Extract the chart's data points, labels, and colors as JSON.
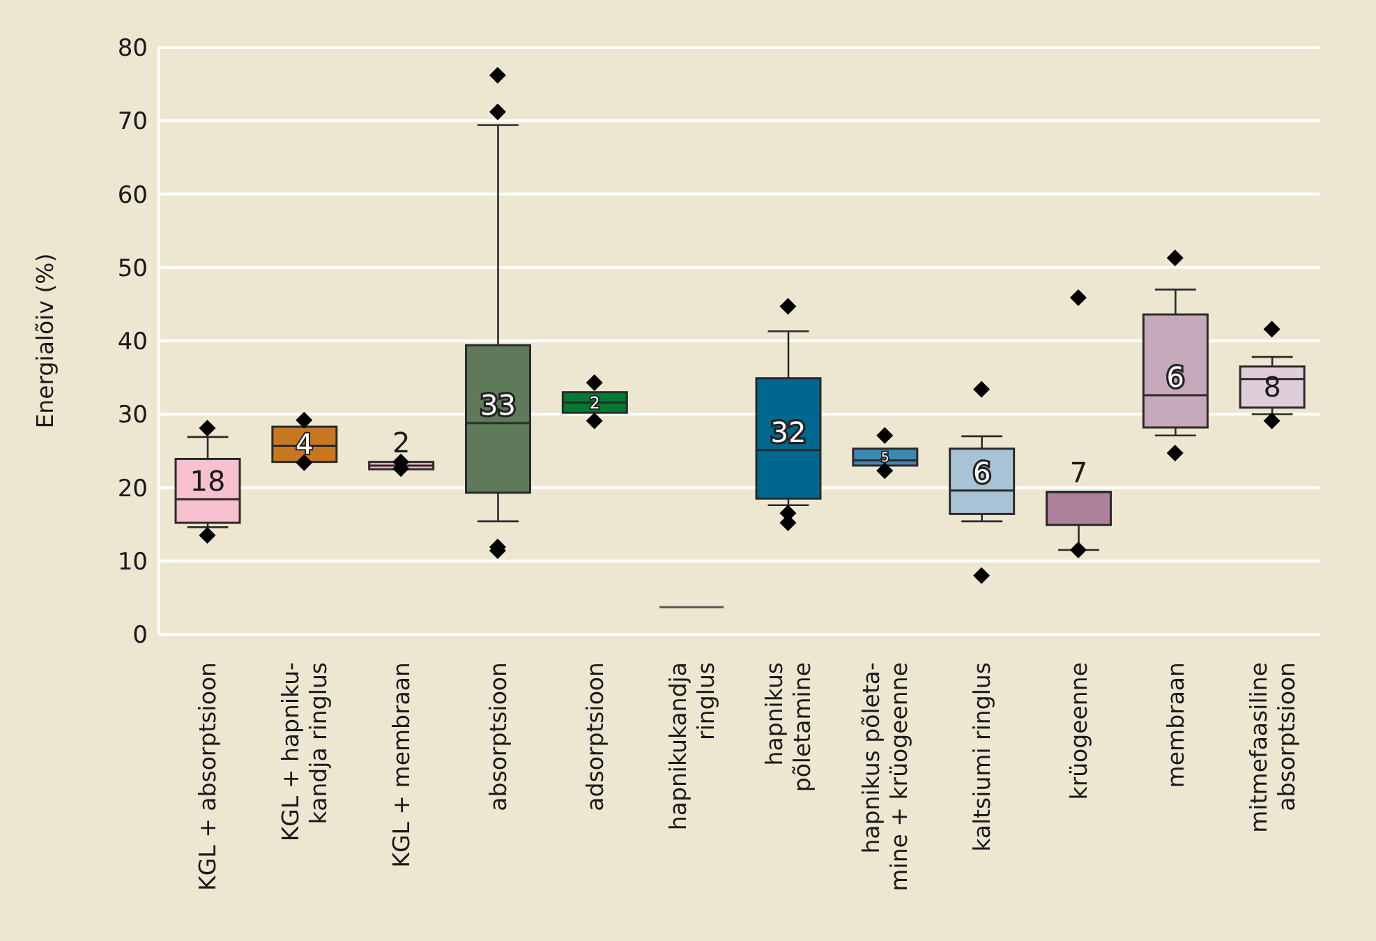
{
  "chart_data": {
    "type": "box",
    "ylabel": "Energialõiv (%)",
    "categories": [
      "KGL + absorptsioon",
      "KGL + hapniku-\nkandja ringlus",
      "KGL + membraan",
      "absorptsioon",
      "adsorptsioon",
      "hapnikukandja\nringlus",
      "hapnikus\npõletamine",
      "hapnikus põleta-\nmine + krüogeenne",
      "kaltsiumi ringlus",
      "krüogeenne",
      "membraan",
      "mitmefaasiline\nabsorptsioon"
    ],
    "boxes": [
      {
        "low": 14.6,
        "q1": 15.2,
        "median": 18.4,
        "q3": 23.9,
        "high": 26.9,
        "outliers": [
          28.1,
          13.5
        ]
      },
      {
        "low": 23.5,
        "q1": 23.5,
        "median": 25.7,
        "q3": 28.3,
        "high": 28.3,
        "outliers": [
          29.2,
          23.4
        ]
      },
      {
        "low": 22.5,
        "q1": 22.5,
        "median": 23.0,
        "q3": 23.5,
        "high": 23.5,
        "outliers": [
          23.5,
          22.6
        ]
      },
      {
        "low": 15.4,
        "q1": 19.3,
        "median": 28.8,
        "q3": 39.4,
        "high": 69.4,
        "outliers": [
          76.2,
          71.2,
          11.9,
          11.4
        ]
      },
      {
        "low": 30.2,
        "q1": 30.2,
        "median": 31.6,
        "q3": 33.0,
        "high": 33.0,
        "outliers": [
          34.3,
          29.1
        ]
      },
      {
        "low": 3.7,
        "q1": 3.7,
        "median": 3.7,
        "q3": 3.7,
        "high": 3.7
      },
      {
        "low": 17.6,
        "q1": 18.5,
        "median": 25.1,
        "q3": 34.9,
        "high": 41.3,
        "outliers": [
          44.7,
          16.5,
          15.2
        ]
      },
      {
        "low": 23.0,
        "q1": 23.0,
        "median": 23.7,
        "q3": 25.3,
        "high": 25.3,
        "outliers": [
          27.1,
          22.3
        ]
      },
      {
        "low": 15.4,
        "q1": 16.4,
        "median": 19.6,
        "q3": 25.3,
        "high": 27.0,
        "outliers": [
          33.4,
          8.0
        ]
      },
      {
        "low": 11.5,
        "q1": 14.9,
        "median": 19.4,
        "q3": 19.4,
        "high": 19.4,
        "outliers": [
          45.9,
          11.5
        ]
      },
      {
        "low": 27.1,
        "q1": 28.2,
        "median": 32.6,
        "q3": 43.6,
        "high": 47.0,
        "outliers": [
          51.3,
          24.7
        ]
      },
      {
        "low": 30.0,
        "q1": 30.9,
        "median": 34.8,
        "q3": 36.5,
        "high": 37.8,
        "outliers": [
          41.6,
          29.1
        ]
      }
    ],
    "colors": [
      "#f7c1d0",
      "#c87620",
      "#f2bccb",
      "#5f7a5a",
      "#007a33",
      "#555555",
      "#00688f",
      "#3a8ab5",
      "#a9c3d6",
      "#ad809c",
      "#c6a9bb",
      "#dfcdd9"
    ],
    "annotations": [
      {
        "text": "18",
        "x": "KGL + absorptsioon",
        "y": 18.4
      },
      {
        "text": "4",
        "x": "KGL + hapniku-\nkandja ringlus",
        "y": 25.7
      },
      {
        "text": "2",
        "x": "KGL + membraan",
        "y": 23.5
      },
      {
        "text": "33",
        "x": "absorptsioon",
        "y": 28.8
      },
      {
        "text": "2",
        "x": "adsorptsioon",
        "y": 31.6
      },
      {
        "text": "32",
        "x": "hapnikus\npõletamine",
        "y": 25.1
      },
      {
        "text": "5",
        "x": "hapnikus põleta-\nmine + krüogeenne",
        "y": 23.7
      },
      {
        "text": "6",
        "x": "kaltsiumi ringlus",
        "y": 19.6
      },
      {
        "text": "7",
        "x": "krüogeenne",
        "y": 19.4
      },
      {
        "text": "6",
        "x": "membraan",
        "y": 32.6
      },
      {
        "text": "8",
        "x": "mitmefaasiline\nabsorptsioon",
        "y": 34.8
      }
    ],
    "ylim": [
      0,
      80
    ],
    "yticks": [
      0,
      10,
      20,
      30,
      40,
      50,
      60,
      70,
      80
    ],
    "grid": "y",
    "marker": "diamond"
  }
}
